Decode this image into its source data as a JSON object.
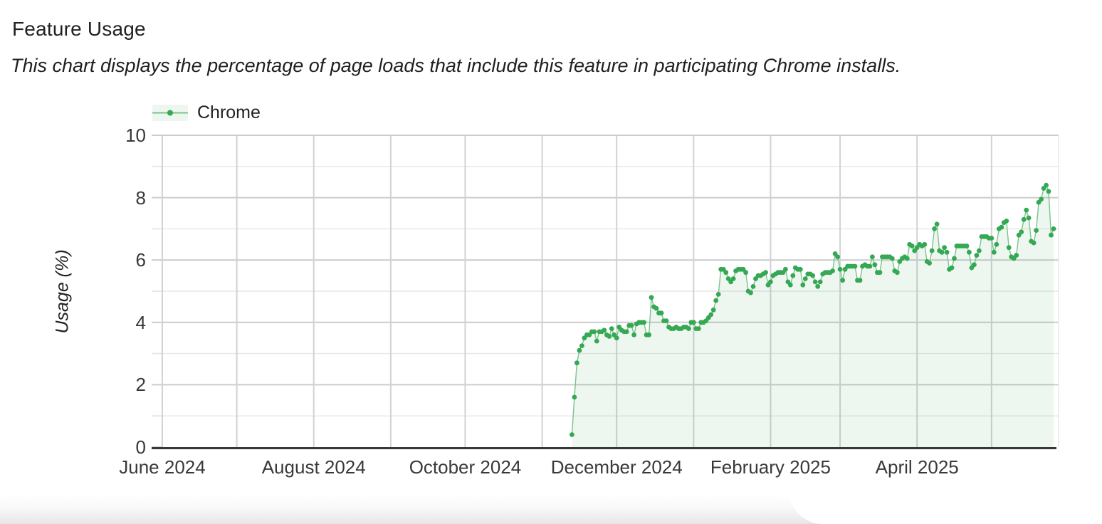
{
  "header": {
    "title": "Feature Usage",
    "subtitle": "This chart displays the percentage of page loads that include this feature in participating Chrome installs."
  },
  "legend": {
    "label": "Chrome"
  },
  "chart_data": {
    "type": "area",
    "title": "Feature Usage",
    "xlabel": "",
    "ylabel": "Usage (%)",
    "ylim": [
      0,
      10
    ],
    "y_ticks_labeled": [
      0,
      2,
      4,
      6,
      8,
      10
    ],
    "y_gridlines": [
      0,
      1,
      2,
      3,
      4,
      5,
      6,
      7,
      8,
      9,
      10
    ],
    "grid": true,
    "legend_position": "top-left",
    "x_domain": {
      "start": "2024-06-01",
      "end": "2025-05-27",
      "total_days": 361
    },
    "x_month_gridlines": [
      {
        "label": "June 2024",
        "day": 0,
        "show_label": true
      },
      {
        "label": "July 2024",
        "day": 30,
        "show_label": false
      },
      {
        "label": "August 2024",
        "day": 61,
        "show_label": true
      },
      {
        "label": "September 2024",
        "day": 92,
        "show_label": false
      },
      {
        "label": "October 2024",
        "day": 122,
        "show_label": true
      },
      {
        "label": "November 2024",
        "day": 153,
        "show_label": false
      },
      {
        "label": "December 2024",
        "day": 183,
        "show_label": true
      },
      {
        "label": "January 2025",
        "day": 214,
        "show_label": false
      },
      {
        "label": "February 2025",
        "day": 245,
        "show_label": true
      },
      {
        "label": "March 2025",
        "day": 273,
        "show_label": false
      },
      {
        "label": "April 2025",
        "day": 304,
        "show_label": true
      },
      {
        "label": "May 2025",
        "day": 334,
        "show_label": false
      }
    ],
    "series": [
      {
        "name": "Chrome",
        "interval": "daily",
        "start_date": "2024-11-13",
        "start_day": 165,
        "values": [
          0.4,
          1.6,
          2.7,
          3.1,
          3.25,
          3.5,
          3.6,
          3.6,
          3.7,
          3.7,
          3.4,
          3.7,
          3.7,
          3.75,
          3.6,
          3.55,
          3.8,
          3.6,
          3.5,
          3.85,
          3.75,
          3.7,
          3.7,
          3.9,
          3.9,
          3.6,
          3.95,
          4.0,
          4.0,
          4.0,
          3.6,
          3.6,
          4.8,
          4.5,
          4.45,
          4.3,
          4.3,
          4.05,
          4.05,
          3.85,
          3.8,
          3.8,
          3.85,
          3.8,
          3.8,
          3.85,
          3.85,
          3.8,
          4.0,
          4.0,
          3.8,
          3.8,
          4.0,
          4.0,
          4.05,
          4.15,
          4.25,
          4.4,
          4.7,
          4.9,
          5.7,
          5.7,
          5.6,
          5.4,
          5.3,
          5.4,
          5.65,
          5.7,
          5.7,
          5.7,
          5.6,
          5.0,
          4.95,
          5.15,
          5.4,
          5.5,
          5.5,
          5.55,
          5.6,
          5.2,
          5.3,
          5.5,
          5.55,
          5.6,
          5.6,
          5.6,
          5.7,
          5.3,
          5.2,
          5.5,
          5.75,
          5.7,
          5.7,
          5.2,
          5.4,
          5.55,
          5.55,
          5.5,
          5.3,
          5.15,
          5.3,
          5.55,
          5.6,
          5.6,
          5.6,
          5.65,
          6.2,
          6.1,
          5.7,
          5.35,
          5.7,
          5.8,
          5.8,
          5.8,
          5.8,
          5.35,
          5.35,
          5.8,
          5.85,
          5.8,
          5.8,
          6.1,
          5.85,
          5.6,
          5.6,
          6.1,
          6.1,
          6.1,
          6.1,
          6.05,
          5.65,
          5.6,
          5.95,
          6.05,
          6.1,
          6.05,
          6.5,
          6.45,
          6.3,
          6.4,
          6.5,
          6.45,
          6.5,
          5.95,
          5.9,
          6.3,
          7.0,
          7.15,
          6.3,
          6.25,
          6.4,
          6.25,
          5.7,
          5.75,
          6.05,
          6.45,
          6.45,
          6.45,
          6.45,
          6.45,
          6.25,
          5.75,
          5.85,
          6.15,
          6.3,
          6.75,
          6.75,
          6.75,
          6.7,
          6.7,
          6.25,
          6.5,
          7.0,
          7.05,
          7.2,
          7.25,
          6.4,
          6.1,
          6.05,
          6.15,
          6.8,
          6.9,
          7.3,
          7.6,
          7.35,
          6.6,
          6.55,
          6.95,
          7.85,
          7.95,
          8.3,
          8.4,
          8.2,
          6.8,
          7.0
        ]
      }
    ],
    "colors": {
      "dot": "#34A853",
      "line": "#7CC28E",
      "fill": "rgba(52,168,83,0.085)",
      "grid_major": "#cccccc",
      "grid_minor": "#e7e7e7",
      "grid_vertical": "#d0d2d3",
      "axis": "#37383a",
      "text": "#202124",
      "tick_text": "#37393b"
    }
  }
}
